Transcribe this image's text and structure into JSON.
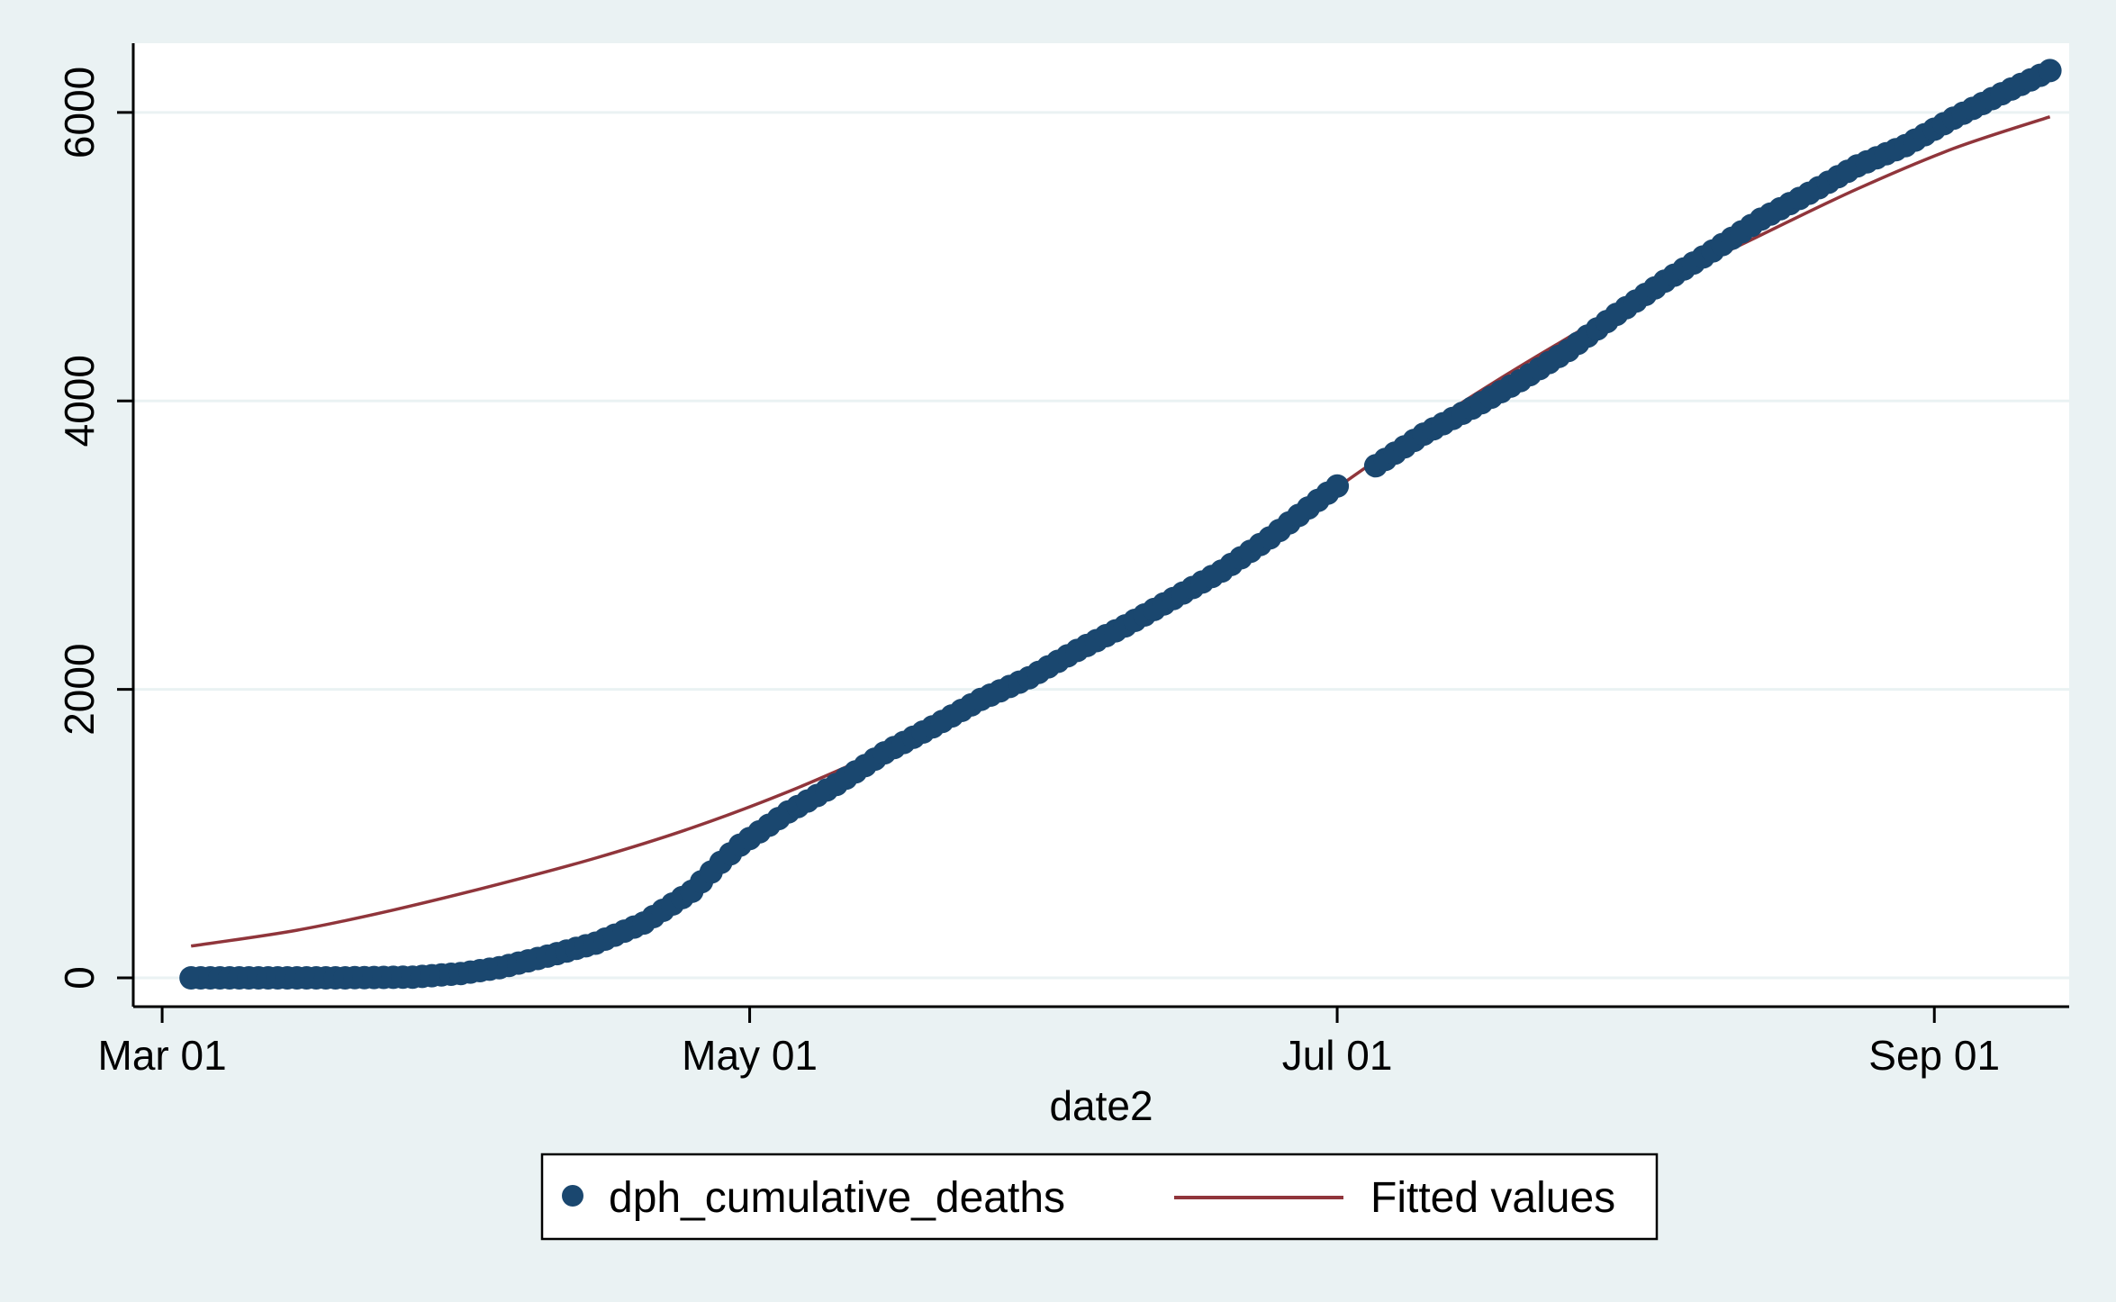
{
  "chart_data": {
    "type": "scatter",
    "title": "",
    "xlabel": "date2",
    "ylabel": "",
    "xlim": [
      "2020-02-27",
      "2020-09-15"
    ],
    "ylim": [
      -200,
      6480
    ],
    "grid": true,
    "x_ticks": [
      {
        "date": "2020-03-01",
        "label": "Mar 01"
      },
      {
        "date": "2020-05-01",
        "label": "May 01"
      },
      {
        "date": "2020-07-01",
        "label": "Jul 01"
      },
      {
        "date": "2020-09-01",
        "label": "Sep 01"
      }
    ],
    "y_ticks": [
      0,
      2000,
      4000,
      6000
    ],
    "legend": {
      "position": "bottom",
      "entries": [
        "dph_cumulative_deaths",
        "Fitted values"
      ]
    },
    "colors": {
      "points": "#1a476f",
      "fitted": "#90353b",
      "grid": "#eaf2f3",
      "plot_bg": "#ffffff",
      "outer_bg": "#eaf2f3"
    },
    "series": [
      {
        "name": "dph_cumulative_deaths",
        "kind": "points",
        "points": [
          [
            "2020-03-04",
            0
          ],
          [
            "2020-03-12",
            0
          ],
          [
            "2020-03-20",
            0
          ],
          [
            "2020-03-27",
            5
          ],
          [
            "2020-04-01",
            30
          ],
          [
            "2020-04-05",
            70
          ],
          [
            "2020-04-10",
            150
          ],
          [
            "2020-04-15",
            240
          ],
          [
            "2020-04-20",
            380
          ],
          [
            "2020-04-25",
            600
          ],
          [
            "2020-04-28",
            800
          ],
          [
            "2020-04-30",
            920
          ],
          [
            "2020-05-05",
            1150
          ],
          [
            "2020-05-10",
            1340
          ],
          [
            "2020-05-15",
            1560
          ],
          [
            "2020-05-20",
            1740
          ],
          [
            "2020-05-25",
            1930
          ],
          [
            "2020-05-30",
            2080
          ],
          [
            "2020-06-04",
            2270
          ],
          [
            "2020-06-09",
            2440
          ],
          [
            "2020-06-14",
            2630
          ],
          [
            "2020-06-19",
            2820
          ],
          [
            "2020-06-24",
            3050
          ],
          [
            "2020-06-29",
            3310
          ],
          [
            "2020-07-02",
            3460
          ],
          [
            "2020-07-05",
            3550
          ],
          [
            "2020-07-10",
            3770
          ],
          [
            "2020-07-15",
            3950
          ],
          [
            "2020-07-20",
            4140
          ],
          [
            "2020-07-25",
            4350
          ],
          [
            "2020-07-30",
            4600
          ],
          [
            "2020-08-04",
            4830
          ],
          [
            "2020-08-09",
            5040
          ],
          [
            "2020-08-14",
            5260
          ],
          [
            "2020-08-19",
            5440
          ],
          [
            "2020-08-24",
            5630
          ],
          [
            "2020-08-29",
            5770
          ],
          [
            "2020-09-03",
            5960
          ],
          [
            "2020-09-08",
            6130
          ],
          [
            "2020-09-13",
            6290
          ]
        ]
      },
      {
        "name": "Fitted values",
        "kind": "line",
        "points": [
          [
            "2020-03-04",
            220
          ],
          [
            "2020-03-15",
            330
          ],
          [
            "2020-03-25",
            470
          ],
          [
            "2020-04-05",
            650
          ],
          [
            "2020-04-15",
            830
          ],
          [
            "2020-04-25",
            1040
          ],
          [
            "2020-05-05",
            1290
          ],
          [
            "2020-05-15",
            1580
          ],
          [
            "2020-05-25",
            1890
          ],
          [
            "2020-06-04",
            2250
          ],
          [
            "2020-06-14",
            2640
          ],
          [
            "2020-06-24",
            3070
          ],
          [
            "2020-07-04",
            3540
          ],
          [
            "2020-07-14",
            3990
          ],
          [
            "2020-07-24",
            4400
          ],
          [
            "2020-08-04",
            4820
          ],
          [
            "2020-08-14",
            5150
          ],
          [
            "2020-08-24",
            5470
          ],
          [
            "2020-09-03",
            5750
          ],
          [
            "2020-09-13",
            5970
          ]
        ]
      }
    ]
  }
}
